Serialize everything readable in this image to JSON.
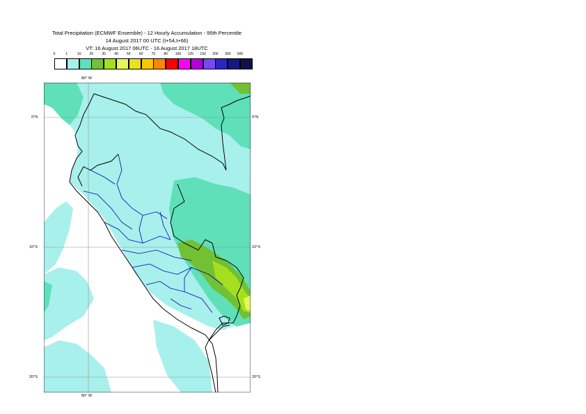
{
  "title": {
    "line1": "Total Precipitation (ECMWF Ensemble) - 12 Hourly Accumulation - 95th Percentile",
    "line2": "14 August 2017 00 UTC (t+54,t+66)",
    "line3": "VT: 16 August 2017 06UTC - 16 August 2017 18UTC"
  },
  "legend": {
    "thresholds": [
      "0",
      "1",
      "10",
      "20",
      "30",
      "40",
      "50",
      "60",
      "70",
      "80",
      "100",
      "125",
      "150",
      "200",
      "300",
      "500"
    ],
    "colors": [
      "#ffffff",
      "#a8f0ec",
      "#5fe0b8",
      "#72c033",
      "#a4e020",
      "#e4f85a",
      "#e8e020",
      "#f8c800",
      "#f88800",
      "#ff0000",
      "#f800f8",
      "#b400d8",
      "#7848f0",
      "#2828c0",
      "#181880",
      "#101050"
    ]
  },
  "map": {
    "lon_labels": [
      "80° W",
      "80° W"
    ],
    "lat_labels": [
      {
        "label": "0°N"
      },
      {
        "label": "10°S"
      },
      {
        "label": "20°S"
      }
    ],
    "colors": {
      "ocean": "#ffffff",
      "light_precip": "#a8f0ec",
      "moderate_precip": "#5fe0b8",
      "heavy_precip": "#72c033",
      "heavier_precip": "#a4e020",
      "peak_precip": "#e4f85a",
      "border_country": "#000000",
      "border_region": "#0000b4",
      "grid": "#909090"
    }
  }
}
